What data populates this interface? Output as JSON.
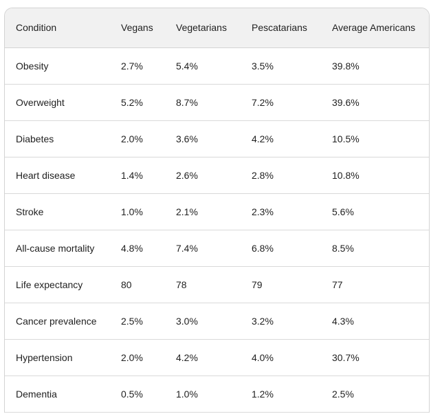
{
  "table": {
    "headers": [
      "Condition",
      "Vegans",
      "Vegetarians",
      "Pescatarians",
      "Average Americans"
    ],
    "rows": [
      [
        "Obesity",
        "2.7%",
        "5.4%",
        "3.5%",
        "39.8%"
      ],
      [
        "Overweight",
        "5.2%",
        "8.7%",
        "7.2%",
        "39.6%"
      ],
      [
        "Diabetes",
        "2.0%",
        "3.6%",
        "4.2%",
        "10.5%"
      ],
      [
        "Heart disease",
        "1.4%",
        "2.6%",
        "2.8%",
        "10.8%"
      ],
      [
        "Stroke",
        "1.0%",
        "2.1%",
        "2.3%",
        "5.6%"
      ],
      [
        "All-cause mortality",
        "4.8%",
        "7.4%",
        "6.8%",
        "8.5%"
      ],
      [
        "Life expectancy",
        "80",
        "78",
        "79",
        "77"
      ],
      [
        "Cancer prevalence",
        "2.5%",
        "3.0%",
        "3.2%",
        "4.3%"
      ],
      [
        "Hypertension",
        "2.0%",
        "4.2%",
        "4.0%",
        "30.7%"
      ],
      [
        "Dementia",
        "0.5%",
        "1.0%",
        "1.2%",
        "2.5%"
      ]
    ]
  }
}
